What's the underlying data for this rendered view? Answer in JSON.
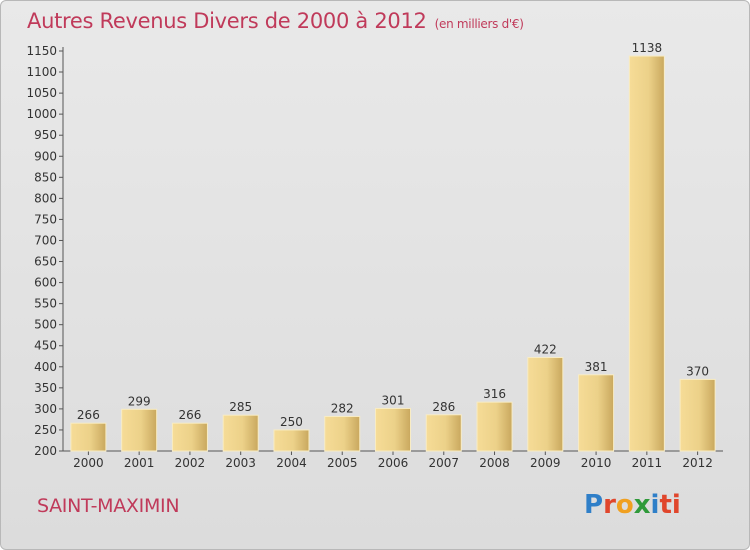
{
  "chart_data": {
    "type": "bar",
    "title": "Autres Revenus Divers de 2000 à 2012",
    "unit_label": "(en milliers d'€)",
    "categories": [
      "2000",
      "2001",
      "2002",
      "2003",
      "2004",
      "2005",
      "2006",
      "2007",
      "2008",
      "2009",
      "2010",
      "2011",
      "2012"
    ],
    "values": [
      266,
      299,
      266,
      285,
      250,
      282,
      301,
      286,
      316,
      422,
      381,
      1138,
      370
    ],
    "ylim": [
      200,
      1150
    ],
    "yticks": [
      200,
      250,
      300,
      350,
      400,
      450,
      500,
      550,
      600,
      650,
      700,
      750,
      800,
      850,
      900,
      950,
      1000,
      1050,
      1100,
      1150
    ],
    "grid": false,
    "legend": "none",
    "bar_color": "#ecd189"
  },
  "footer": {
    "town": "SAINT-MAXIMIN",
    "logo": [
      "P",
      "r",
      "o",
      "x",
      "i",
      "ti"
    ]
  }
}
